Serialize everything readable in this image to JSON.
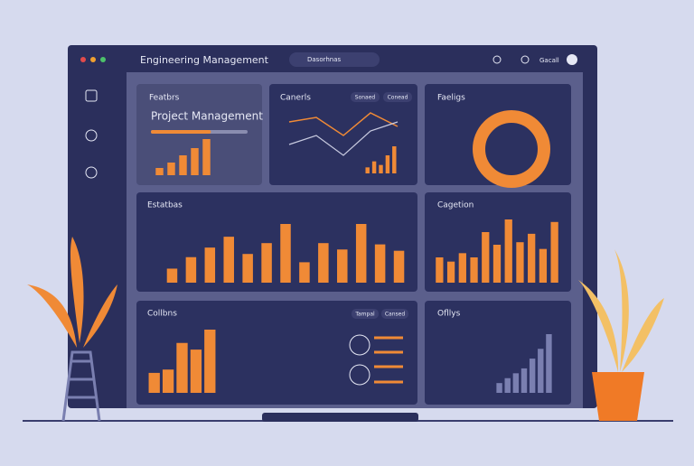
{
  "header": {
    "title": "Engineering Management",
    "search": "Dasorhnas",
    "user": "Gacall"
  },
  "panels": {
    "features": {
      "label": "Featbrs",
      "title": "Project Management",
      "progress": 62,
      "values": [
        8,
        14,
        22,
        30,
        40
      ]
    },
    "channels": {
      "label": "Canerls",
      "buttons": [
        "Sonaed",
        "Conead"
      ],
      "values": [
        10,
        20,
        14,
        30,
        45
      ]
    },
    "feelings": {
      "label": "Faeligs"
    },
    "estimates": {
      "label": "Estatbas",
      "values": [
        22,
        40,
        55,
        72,
        45,
        62,
        92,
        32,
        62,
        52,
        92,
        60,
        50
      ]
    },
    "categories": {
      "label": "Cagetion",
      "values": [
        30,
        25,
        35,
        30,
        60,
        45,
        75,
        48,
        58,
        40,
        72
      ]
    },
    "columns": {
      "label": "Collbns",
      "buttons": [
        "Tampal",
        "Cansed"
      ],
      "values": [
        30,
        35,
        75,
        65,
        95
      ]
    },
    "overlays": {
      "label": "Ofllys",
      "values": [
        10,
        15,
        20,
        25,
        35,
        45,
        60
      ]
    }
  }
}
